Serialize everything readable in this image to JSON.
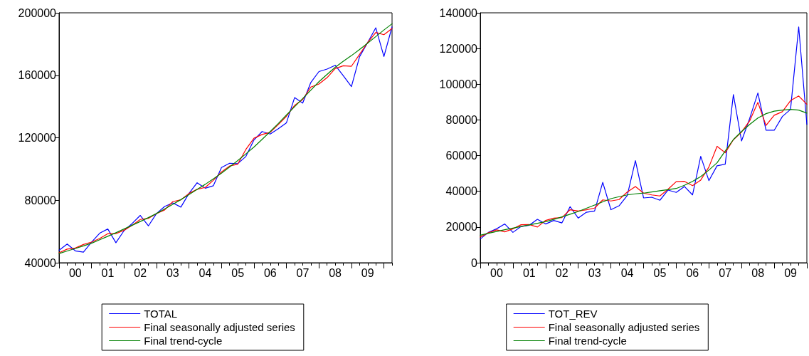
{
  "chart_data": [
    {
      "type": "line",
      "categories": [
        null,
        null,
        "00",
        null,
        null,
        null,
        "01",
        null,
        null,
        null,
        "02",
        null,
        null,
        null,
        "03",
        null,
        null,
        null,
        "04",
        null,
        null,
        null,
        "05",
        null,
        null,
        null,
        "06",
        null,
        null,
        null,
        "07",
        null,
        null,
        null,
        "08",
        null,
        null,
        null,
        "09",
        null,
        null,
        null
      ],
      "series": [
        {
          "name": "TOTAL",
          "color": "#0000ff",
          "values": [
            48000,
            52000,
            47600,
            46800,
            53200,
            58900,
            61600,
            52800,
            60500,
            65100,
            70300,
            63600,
            71500,
            76000,
            78300,
            75600,
            84400,
            91200,
            87700,
            89300,
            101000,
            103700,
            103400,
            108000,
            118600,
            124000,
            122400,
            125800,
            129600,
            145700,
            142200,
            155400,
            162400,
            164000,
            166400,
            159700,
            152800,
            171900,
            181000,
            190400,
            172000,
            191000
          ]
        },
        {
          "name": "Final seasonally adjusted series",
          "color": "#ff0000",
          "values": [
            46400,
            48700,
            49400,
            51700,
            53200,
            55500,
            58600,
            58600,
            60800,
            63900,
            67700,
            68400,
            71500,
            73800,
            79100,
            80300,
            84400,
            87000,
            88200,
            92800,
            98100,
            101900,
            103100,
            112500,
            119700,
            122100,
            123500,
            128500,
            133800,
            140700,
            144500,
            152500,
            154400,
            158500,
            164300,
            166100,
            165800,
            173400,
            181000,
            187400,
            186000,
            190000
          ]
        },
        {
          "name": "Final trend-cycle",
          "color": "#008000",
          "values": [
            45900,
            47500,
            49100,
            50800,
            52500,
            54700,
            56900,
            59200,
            61600,
            64000,
            66400,
            68900,
            71500,
            74400,
            77400,
            80400,
            83600,
            86900,
            90200,
            93700,
            97300,
            101300,
            105400,
            109700,
            114100,
            119000,
            124000,
            129200,
            134600,
            139900,
            145100,
            150500,
            155900,
            160600,
            165100,
            169000,
            172600,
            176500,
            180600,
            184800,
            189000,
            193000
          ]
        }
      ],
      "ylim": [
        40000,
        200000
      ],
      "yticks": [
        40000,
        80000,
        120000,
        160000,
        200000
      ],
      "grid": false,
      "legend": "bottom",
      "marker": "none",
      "line_style": "solid"
    },
    {
      "type": "line",
      "categories": [
        null,
        null,
        "00",
        null,
        null,
        null,
        "01",
        null,
        null,
        null,
        "02",
        null,
        null,
        null,
        "03",
        null,
        null,
        null,
        "04",
        null,
        null,
        null,
        "05",
        null,
        null,
        null,
        "06",
        null,
        null,
        null,
        "07",
        null,
        null,
        null,
        "08",
        null,
        null,
        null,
        "09",
        null,
        null
      ],
      "series": [
        {
          "name": "TOT_REV",
          "color": "#0000ff",
          "values": [
            13300,
            17000,
            19000,
            21700,
            17000,
            20300,
            21000,
            24300,
            21700,
            23700,
            22300,
            31400,
            25000,
            28300,
            29000,
            45000,
            29700,
            31900,
            37600,
            57200,
            36300,
            36700,
            35000,
            40700,
            39400,
            42700,
            38000,
            59600,
            46000,
            54300,
            55200,
            94200,
            68200,
            80900,
            95100,
            74200,
            74200,
            81900,
            85900,
            132100,
            77500
          ]
        },
        {
          "name": "Final seasonally adjusted series",
          "color": "#ff0000",
          "values": [
            14400,
            16800,
            18400,
            17300,
            19000,
            21300,
            21400,
            20000,
            23700,
            25000,
            25300,
            29700,
            29000,
            29700,
            30600,
            35200,
            34600,
            35400,
            39600,
            42700,
            39000,
            38000,
            37400,
            41200,
            45400,
            45600,
            43200,
            46300,
            53600,
            65200,
            61600,
            68900,
            73200,
            79500,
            89800,
            76900,
            82600,
            84600,
            90800,
            93400,
            88800
          ]
        },
        {
          "name": "Final trend-cycle",
          "color": "#008000",
          "values": [
            15400,
            16500,
            17500,
            18500,
            19400,
            20300,
            21200,
            22100,
            23000,
            24300,
            25700,
            27200,
            28700,
            30500,
            32300,
            34100,
            35900,
            37000,
            38000,
            38600,
            39000,
            39600,
            40300,
            40900,
            41600,
            43400,
            45600,
            48300,
            51900,
            56000,
            62600,
            69000,
            73500,
            77500,
            81100,
            83500,
            84900,
            85500,
            85900,
            85500,
            83800
          ]
        }
      ],
      "ylim": [
        0,
        140000
      ],
      "yticks": [
        0,
        20000,
        40000,
        60000,
        80000,
        100000,
        120000,
        140000
      ],
      "grid": false,
      "legend": "bottom",
      "marker": "none",
      "line_style": "solid"
    }
  ]
}
